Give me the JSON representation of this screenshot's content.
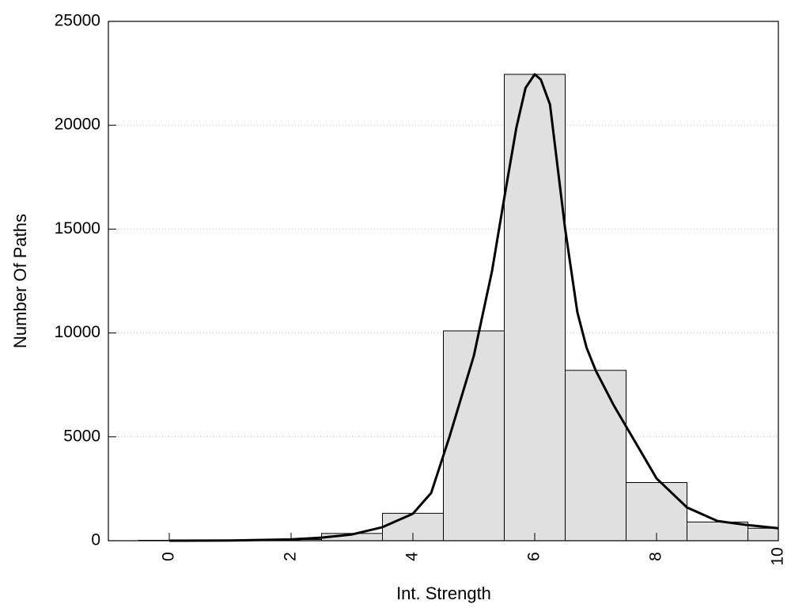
{
  "chart_data": {
    "type": "bar",
    "title": "",
    "xlabel": "Int. Strength",
    "ylabel": "Number Of Paths",
    "xlim": [
      -1,
      10
    ],
    "ylim": [
      0,
      25000
    ],
    "xticks": [
      0,
      2,
      4,
      6,
      8,
      10
    ],
    "yticks": [
      0,
      5000,
      10000,
      15000,
      20000,
      25000
    ],
    "grid": "horizontal-dotted",
    "legend": "none",
    "bar_color": "#e0e0e0",
    "bar_edge_color": "#000000",
    "line_color": "#000000",
    "bars": {
      "x": [
        0,
        1,
        2,
        3,
        4,
        5,
        6,
        7,
        8,
        9,
        10
      ],
      "values": [
        20,
        30,
        60,
        350,
        1320,
        10100,
        22450,
        8200,
        2800,
        900,
        600
      ]
    },
    "curve": {
      "x": [
        0,
        1,
        2,
        2.5,
        3,
        3.5,
        4,
        4.3,
        4.6,
        5,
        5.3,
        5.5,
        5.7,
        5.85,
        6,
        6.1,
        6.25,
        6.5,
        6.7,
        6.85,
        7,
        7.3,
        7.6,
        8,
        8.5,
        9,
        9.5,
        10
      ],
      "values": [
        0,
        10,
        60,
        150,
        300,
        650,
        1300,
        2300,
        5000,
        8900,
        13000,
        16500,
        19900,
        21800,
        22450,
        22200,
        21000,
        15000,
        11000,
        9300,
        8200,
        6500,
        5000,
        3000,
        1600,
        950,
        750,
        600
      ]
    }
  }
}
